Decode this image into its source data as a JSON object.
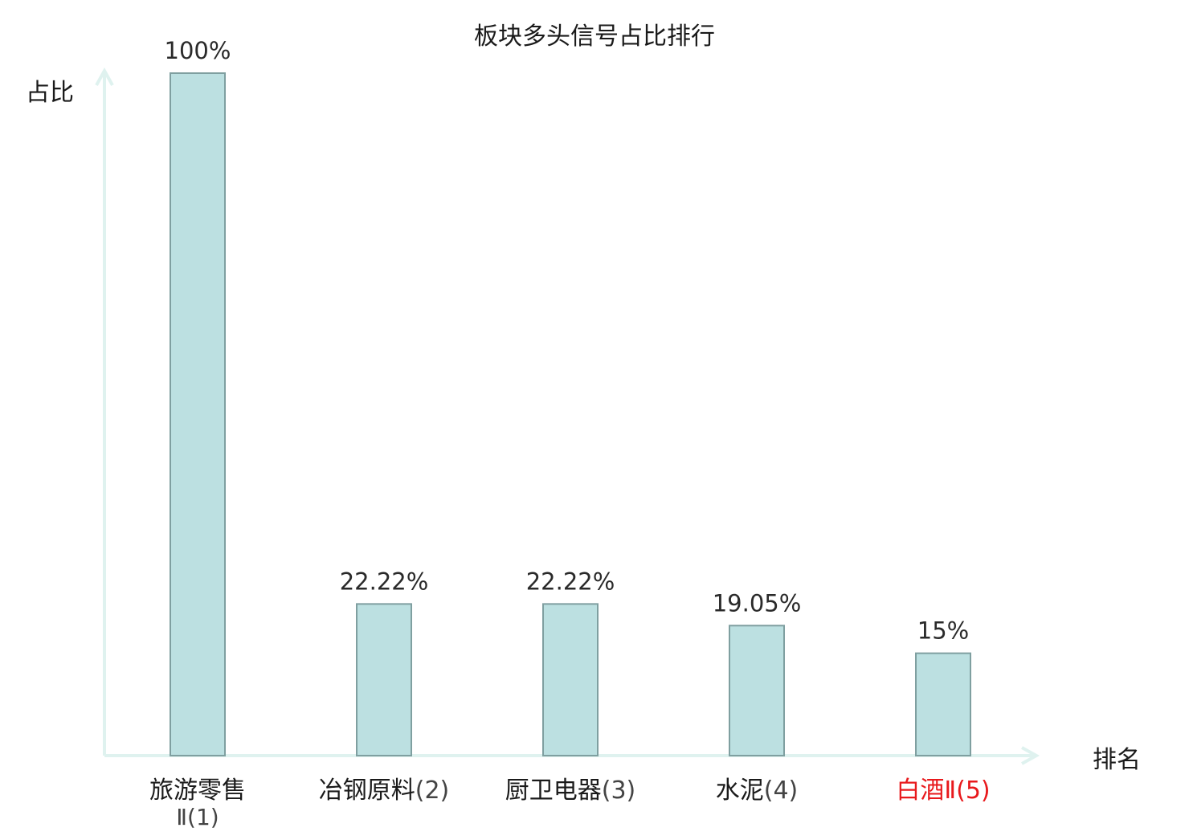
{
  "chart_data": {
    "type": "bar",
    "title": "板块多头信号占比排行",
    "xlabel": "排名",
    "ylabel": "占比",
    "ylim": [
      0,
      100
    ],
    "grid": false,
    "unit": "%",
    "categories": [
      {
        "name": "旅游零售Ⅱ",
        "rank": "(1)",
        "highlight": false
      },
      {
        "name": "冶钢原料",
        "rank": "(2)",
        "highlight": false
      },
      {
        "name": "厨卫电器",
        "rank": "(3)",
        "highlight": false
      },
      {
        "name": "水泥",
        "rank": "(4)",
        "highlight": false
      },
      {
        "name": "白酒Ⅱ",
        "rank": "(5)",
        "highlight": true
      }
    ],
    "values": [
      100,
      22.22,
      22.22,
      19.05,
      15
    ],
    "value_labels": [
      "100%",
      "22.22%",
      "22.22%",
      "19.05%",
      "15%"
    ],
    "colors": {
      "bar_fill": "#bce0e1",
      "bar_stroke": "#7f9fa0",
      "axis": "#dff2ef",
      "text": "#1a1a1a",
      "rank_text": "#444444",
      "highlight_text": "#e8191c"
    }
  }
}
